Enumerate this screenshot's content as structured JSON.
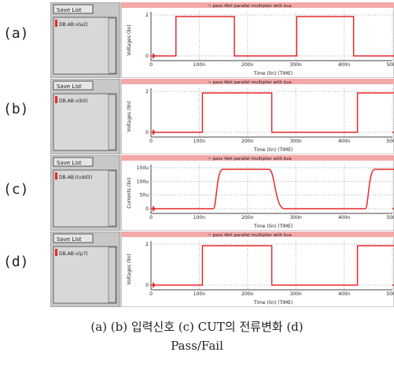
{
  "row_labels": [
    "(a)",
    "(b)",
    "(c)",
    "(d)"
  ],
  "save_list_label": "Save List",
  "panel_title": "~ pass 4bit parallel multiplier with bus",
  "panels": [
    {
      "signal": "DB.AB:v(a2)",
      "ylabel": "Voltages (lin)",
      "xlabel": "Time (lin) (TIME)",
      "yticks": [
        "2",
        "0"
      ],
      "xticks": [
        "0",
        "100n",
        "200n",
        "300n",
        "400n",
        "500n"
      ],
      "pulses": [
        [
          70,
          145
        ],
        [
          225,
          298
        ],
        [
          382,
          460
        ]
      ],
      "ystyle": "square"
    },
    {
      "signal": "DB.AB:v(b0)",
      "ylabel": "Voltages (lin)",
      "xlabel": "Time (lin) (TIME)",
      "yticks": [
        "2",
        "0"
      ],
      "xticks": [
        "0",
        "100n",
        "200n",
        "300n",
        "400n",
        "500n"
      ],
      "pulses": [
        [
          104,
          193
        ],
        [
          303,
          408
        ]
      ],
      "ystyle": "square"
    },
    {
      "signal": "DB.AB:i(vdd3)",
      "ylabel": "Currents (lin)",
      "xlabel": "Time (lin) (TIME)",
      "yticks": [
        "150u",
        "100u",
        "50u",
        "0"
      ],
      "xticks": [
        "0",
        "100n",
        "200n",
        "300n",
        "400n",
        "500n"
      ],
      "pulses": [
        [
          118,
          199
        ],
        [
          313,
          385
        ]
      ],
      "ystyle": "current"
    },
    {
      "signal": "DB.AB:v(p7)",
      "ylabel": "Voltages (lin)",
      "xlabel": "Time (lin) (TIME)",
      "yticks": [
        "2",
        "0"
      ],
      "xticks": [
        "0",
        "100n",
        "200n",
        "300n",
        "400n",
        "500n"
      ],
      "pulses": [
        [
          104,
          193
        ],
        [
          303,
          408
        ]
      ],
      "ystyle": "square"
    }
  ],
  "caption_line1": "(a) (b) 입력신호  (c) CUT의 전류변화  (d)",
  "caption_line2": "Pass/Fail",
  "colors": {
    "trace": "#e8282a",
    "pink": "#f4a8a8",
    "panel_gray": "#c8c8c8",
    "grid": "#b0b0b0"
  }
}
